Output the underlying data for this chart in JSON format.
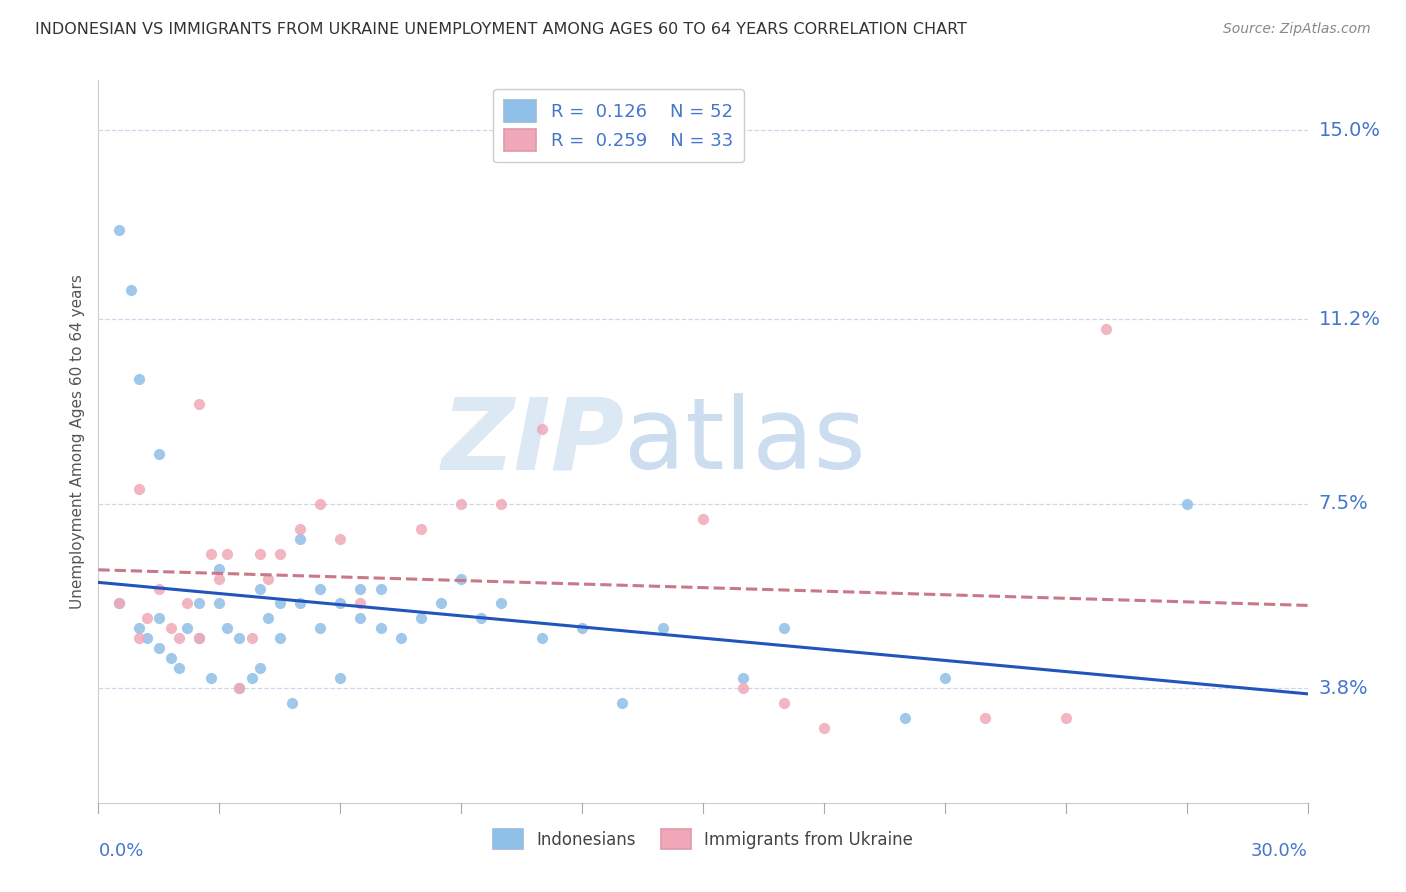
{
  "title": "INDONESIAN VS IMMIGRANTS FROM UKRAINE UNEMPLOYMENT AMONG AGES 60 TO 64 YEARS CORRELATION CHART",
  "source": "Source: ZipAtlas.com",
  "ylabel": "Unemployment Among Ages 60 to 64 years",
  "ytick_vals": [
    0.038,
    0.075,
    0.112,
    0.15
  ],
  "ytick_labels": [
    "3.8%",
    "7.5%",
    "11.2%",
    "15.0%"
  ],
  "xlim": [
    0.0,
    0.3
  ],
  "ylim": [
    0.015,
    0.16
  ],
  "indonesian_R": "0.126",
  "indonesian_N": "52",
  "ukraine_R": "0.259",
  "ukraine_N": "33",
  "legend_label1": "Indonesians",
  "legend_label2": "Immigrants from Ukraine",
  "dot_color_blue": "#90bfe8",
  "dot_color_pink": "#f0a8b8",
  "line_color_blue": "#2255bb",
  "line_color_pink": "#cc7788",
  "background_color": "#ffffff",
  "grid_color": "#c8d8ee",
  "title_color": "#333333",
  "axis_color": "#4477cc",
  "indonesian_x": [
    0.005,
    0.01,
    0.012,
    0.015,
    0.015,
    0.018,
    0.02,
    0.022,
    0.025,
    0.025,
    0.028,
    0.03,
    0.03,
    0.032,
    0.035,
    0.035,
    0.038,
    0.04,
    0.04,
    0.042,
    0.045,
    0.045,
    0.048,
    0.05,
    0.05,
    0.055,
    0.055,
    0.06,
    0.06,
    0.065,
    0.065,
    0.07,
    0.07,
    0.075,
    0.08,
    0.085,
    0.09,
    0.095,
    0.1,
    0.11,
    0.12,
    0.13,
    0.14,
    0.16,
    0.17,
    0.2,
    0.21,
    0.27,
    0.005,
    0.008,
    0.01,
    0.015
  ],
  "indonesian_y": [
    0.055,
    0.05,
    0.048,
    0.046,
    0.052,
    0.044,
    0.042,
    0.05,
    0.048,
    0.055,
    0.04,
    0.055,
    0.062,
    0.05,
    0.038,
    0.048,
    0.04,
    0.058,
    0.042,
    0.052,
    0.048,
    0.055,
    0.035,
    0.055,
    0.068,
    0.058,
    0.05,
    0.04,
    0.055,
    0.052,
    0.058,
    0.05,
    0.058,
    0.048,
    0.052,
    0.055,
    0.06,
    0.052,
    0.055,
    0.048,
    0.05,
    0.035,
    0.05,
    0.04,
    0.05,
    0.032,
    0.04,
    0.075,
    0.13,
    0.118,
    0.1,
    0.085
  ],
  "ukraine_x": [
    0.005,
    0.01,
    0.012,
    0.015,
    0.018,
    0.02,
    0.022,
    0.025,
    0.028,
    0.03,
    0.032,
    0.035,
    0.038,
    0.04,
    0.042,
    0.045,
    0.05,
    0.055,
    0.06,
    0.065,
    0.08,
    0.09,
    0.1,
    0.11,
    0.15,
    0.16,
    0.17,
    0.18,
    0.22,
    0.24,
    0.25,
    0.01,
    0.025
  ],
  "ukraine_y": [
    0.055,
    0.048,
    0.052,
    0.058,
    0.05,
    0.048,
    0.055,
    0.048,
    0.065,
    0.06,
    0.065,
    0.038,
    0.048,
    0.065,
    0.06,
    0.065,
    0.07,
    0.075,
    0.068,
    0.055,
    0.07,
    0.075,
    0.075,
    0.09,
    0.072,
    0.038,
    0.035,
    0.03,
    0.032,
    0.032,
    0.11,
    0.078,
    0.095
  ],
  "watermark_zip_color": "#dde8f5",
  "watermark_atlas_color": "#ccddf0"
}
